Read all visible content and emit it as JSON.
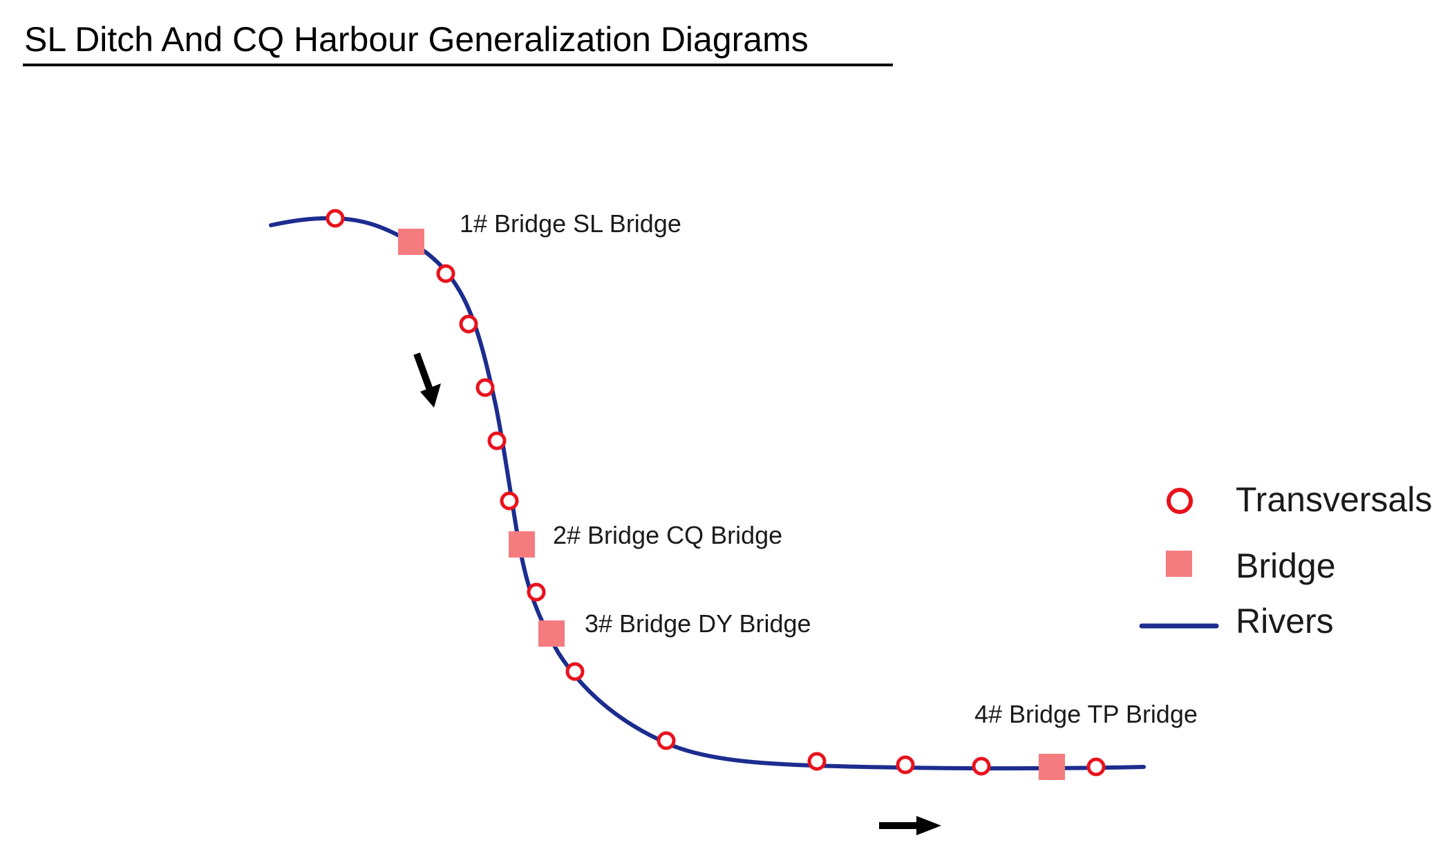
{
  "title": "SL Ditch And CQ Harbour Generalization Diagrams",
  "colors": {
    "river": "#1c2d8f",
    "transversal_stroke": "#e8121d",
    "transversal_fill": "#ffffff",
    "bridge": "#f47c7f",
    "arrow": "#000000",
    "text": "#1a1a1a"
  },
  "bridges": [
    {
      "label": "1# Bridge SL Bridge"
    },
    {
      "label": "2# Bridge CQ Bridge"
    },
    {
      "label": "3# Bridge DY Bridge"
    },
    {
      "label": "4# Bridge TP Bridge"
    }
  ],
  "legend": {
    "transversals": "Transversals",
    "bridge": "Bridge",
    "rivers": "Rivers"
  },
  "icons": {
    "flow_arrows": "flow-direction-arrow-icon",
    "transversal": "transversal-circle-icon",
    "bridge": "bridge-square-icon"
  }
}
